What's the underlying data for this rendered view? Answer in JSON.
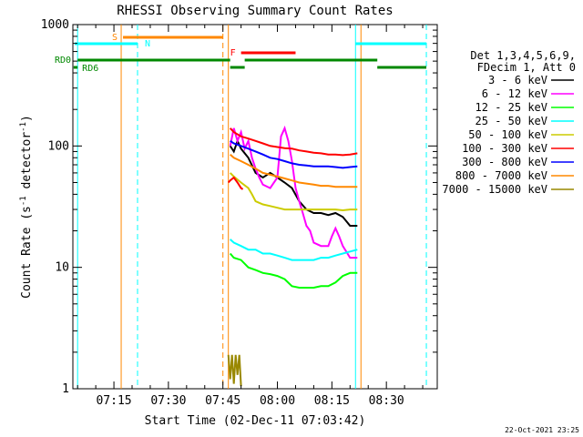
{
  "chart_data": {
    "type": "line",
    "title": "RHESSI Observing Summary Count Rates",
    "xlabel": "Start Time (02-Dec-11 07:03:42)",
    "ylabel_parts": [
      "Count Rate (s",
      "-1",
      " detector",
      "-1",
      ")"
    ],
    "footer_date": "22-Oct-2021 23:25",
    "y_scale": "log",
    "ylim": [
      1,
      1000
    ],
    "xlim_min": [
      3.7,
      104
    ],
    "y_ticks": [
      {
        "v": 1,
        "label": "1"
      },
      {
        "v": 10,
        "label": "10"
      },
      {
        "v": 100,
        "label": "100"
      },
      {
        "v": 1000,
        "label": "1000"
      }
    ],
    "x_ticks": [
      {
        "m": 15,
        "label": "07:15"
      },
      {
        "m": 30,
        "label": "07:30"
      },
      {
        "m": 45,
        "label": "07:45"
      },
      {
        "m": 60,
        "label": "08:00"
      },
      {
        "m": 75,
        "label": "08:15"
      },
      {
        "m": 90,
        "label": "08:30"
      }
    ],
    "legend_header": [
      "Det 1,3,4,5,6,9,",
      "FDecim 1, Att 0"
    ],
    "series": [
      {
        "name": "3 - 6 keV",
        "color": "#000000",
        "points": [
          [
            47,
            100
          ],
          [
            48,
            90
          ],
          [
            49,
            110
          ],
          [
            50,
            95
          ],
          [
            52,
            80
          ],
          [
            54,
            60
          ],
          [
            56,
            55
          ],
          [
            58,
            60
          ],
          [
            60,
            55
          ],
          [
            62,
            50
          ],
          [
            64,
            45
          ],
          [
            66,
            35
          ],
          [
            68,
            30
          ],
          [
            70,
            28
          ],
          [
            72,
            28
          ],
          [
            74,
            27
          ],
          [
            76,
            28
          ],
          [
            78,
            26
          ],
          [
            80,
            22
          ],
          [
            82,
            22
          ]
        ]
      },
      {
        "name": "6 - 12 keV",
        "color": "#ff00ff",
        "points": [
          [
            47,
            100
          ],
          [
            48,
            140
          ],
          [
            49,
            110
          ],
          [
            50,
            130
          ],
          [
            51,
            95
          ],
          [
            52,
            110
          ],
          [
            53,
            80
          ],
          [
            54,
            65
          ],
          [
            55,
            55
          ],
          [
            56,
            48
          ],
          [
            58,
            45
          ],
          [
            60,
            55
          ],
          [
            61,
            120
          ],
          [
            62,
            140
          ],
          [
            63,
            110
          ],
          [
            64,
            75
          ],
          [
            65,
            45
          ],
          [
            66,
            35
          ],
          [
            67,
            28
          ],
          [
            68,
            22
          ],
          [
            69,
            20
          ],
          [
            70,
            16
          ],
          [
            72,
            15
          ],
          [
            74,
            15
          ],
          [
            75,
            18
          ],
          [
            76,
            21
          ],
          [
            77,
            18
          ],
          [
            78,
            15
          ],
          [
            80,
            12
          ],
          [
            82,
            12
          ]
        ]
      },
      {
        "name": "12 - 25 keV",
        "color": "#00ff00",
        "points": [
          [
            47,
            13
          ],
          [
            48,
            12
          ],
          [
            50,
            11.5
          ],
          [
            52,
            10
          ],
          [
            54,
            9.5
          ],
          [
            56,
            9
          ],
          [
            58,
            8.8
          ],
          [
            60,
            8.5
          ],
          [
            62,
            8
          ],
          [
            64,
            7
          ],
          [
            66,
            6.8
          ],
          [
            68,
            6.8
          ],
          [
            70,
            6.8
          ],
          [
            72,
            7
          ],
          [
            74,
            7
          ],
          [
            76,
            7.5
          ],
          [
            78,
            8.5
          ],
          [
            80,
            9
          ],
          [
            82,
            9
          ]
        ]
      },
      {
        "name": "25 - 50 keV",
        "color": "#00ffff",
        "points": [
          [
            47,
            17
          ],
          [
            48,
            16
          ],
          [
            50,
            15
          ],
          [
            52,
            14
          ],
          [
            54,
            14
          ],
          [
            56,
            13
          ],
          [
            58,
            13
          ],
          [
            60,
            12.5
          ],
          [
            62,
            12
          ],
          [
            64,
            11.5
          ],
          [
            66,
            11.5
          ],
          [
            68,
            11.5
          ],
          [
            70,
            11.5
          ],
          [
            72,
            12
          ],
          [
            74,
            12
          ],
          [
            76,
            12.5
          ],
          [
            78,
            13
          ],
          [
            80,
            13.5
          ],
          [
            82,
            14
          ]
        ]
      },
      {
        "name": "50 - 100 keV",
        "color": "#cccc00",
        "points": [
          [
            47,
            60
          ],
          [
            48,
            56
          ],
          [
            50,
            50
          ],
          [
            52,
            45
          ],
          [
            53,
            40
          ],
          [
            54,
            35
          ],
          [
            56,
            33
          ],
          [
            58,
            32
          ],
          [
            60,
            31
          ],
          [
            62,
            30
          ],
          [
            64,
            30
          ],
          [
            66,
            30
          ],
          [
            68,
            30
          ],
          [
            70,
            30
          ],
          [
            72,
            30
          ],
          [
            74,
            30
          ],
          [
            76,
            30
          ],
          [
            78,
            29.5
          ],
          [
            80,
            30
          ],
          [
            82,
            30
          ]
        ]
      },
      {
        "name": "100 - 300 keV",
        "color": "#ff0000",
        "points": [
          [
            47,
            140
          ],
          [
            48,
            130
          ],
          [
            50,
            120
          ],
          [
            52,
            115
          ],
          [
            54,
            110
          ],
          [
            56,
            105
          ],
          [
            58,
            100
          ],
          [
            60,
            98
          ],
          [
            62,
            96
          ],
          [
            64,
            95
          ],
          [
            66,
            92
          ],
          [
            68,
            90
          ],
          [
            70,
            88
          ],
          [
            72,
            87
          ],
          [
            74,
            85
          ],
          [
            76,
            85
          ],
          [
            78,
            84
          ],
          [
            80,
            85
          ],
          [
            82,
            87
          ]
        ]
      },
      {
        "name": "300 - 800 keV",
        "color": "#0000ff",
        "points": [
          [
            47,
            110
          ],
          [
            48,
            105
          ],
          [
            50,
            100
          ],
          [
            52,
            95
          ],
          [
            54,
            90
          ],
          [
            56,
            85
          ],
          [
            58,
            80
          ],
          [
            60,
            78
          ],
          [
            62,
            75
          ],
          [
            64,
            72
          ],
          [
            66,
            70
          ],
          [
            68,
            69
          ],
          [
            70,
            68
          ],
          [
            72,
            68
          ],
          [
            74,
            68
          ],
          [
            76,
            67
          ],
          [
            78,
            66
          ],
          [
            80,
            67
          ],
          [
            82,
            68
          ]
        ]
      },
      {
        "name": "800 - 7000 keV",
        "color": "#ff8800",
        "points": [
          [
            47,
            85
          ],
          [
            48,
            80
          ],
          [
            50,
            75
          ],
          [
            52,
            70
          ],
          [
            54,
            65
          ],
          [
            56,
            60
          ],
          [
            58,
            58
          ],
          [
            60,
            56
          ],
          [
            62,
            54
          ],
          [
            64,
            52
          ],
          [
            66,
            50
          ],
          [
            68,
            49
          ],
          [
            70,
            48
          ],
          [
            72,
            47
          ],
          [
            74,
            47
          ],
          [
            76,
            46
          ],
          [
            78,
            46
          ],
          [
            80,
            46
          ],
          [
            82,
            46
          ]
        ]
      },
      {
        "name": "7000 - 15000 keV",
        "color": "#998800",
        "points": [
          [
            46.5,
            1.9
          ],
          [
            47,
            1.2
          ],
          [
            47.5,
            1.9
          ],
          [
            48,
            1.1
          ],
          [
            48.5,
            1.9
          ],
          [
            49,
            1.3
          ],
          [
            49.5,
            1.9
          ],
          [
            50,
            1.05
          ]
        ]
      },
      {
        "name": "",
        "color": "#ff0000",
        "points": [
          [
            46.5,
            50
          ],
          [
            47,
            52
          ],
          [
            48,
            55
          ],
          [
            49,
            50
          ],
          [
            50,
            45
          ],
          [
            50.5,
            44
          ]
        ]
      }
    ],
    "vlines": [
      {
        "m": 5.0,
        "color": "#00ffff",
        "dash": false
      },
      {
        "m": 17.0,
        "color": "#ff8800",
        "dash": false
      },
      {
        "m": 21.5,
        "color": "#00ffff",
        "dash": true
      },
      {
        "m": 45.0,
        "color": "#ff8800",
        "dash": true
      },
      {
        "m": 46.5,
        "color": "#ff8800",
        "dash": false
      },
      {
        "m": 83.0,
        "color": "#ff8800",
        "dash": false
      },
      {
        "m": 81.5,
        "color": "#00ffff",
        "dash": false
      },
      {
        "m": 101.0,
        "color": "#00ffff",
        "dash": true
      }
    ],
    "flag_bars": [
      {
        "label": "S",
        "label_color": "#ff8800",
        "color": "#ff8800",
        "y": 41,
        "segments": [
          [
            17.5,
            45
          ]
        ]
      },
      {
        "label": "N",
        "label_color": "#00ffff",
        "color": "#00ffff",
        "y": 48,
        "segments": [
          [
            4.2,
            21.5
          ],
          [
            81.5,
            101
          ]
        ]
      },
      {
        "label": "F",
        "label_color": "#ff0000",
        "color": "#ff0000",
        "y": 58,
        "segments": [
          [
            50,
            65
          ]
        ]
      },
      {
        "label": "RD0",
        "label_color": "#008800",
        "color": "#008800",
        "y": 66,
        "segments": [
          [
            5,
            47
          ],
          [
            51,
            87.5
          ]
        ]
      },
      {
        "label": "RD6",
        "label_color": "#008800",
        "color": "#008800",
        "y": 74,
        "segments": [
          [
            3.9,
            5
          ],
          [
            47,
            51
          ],
          [
            87.5,
            101
          ]
        ]
      }
    ]
  }
}
